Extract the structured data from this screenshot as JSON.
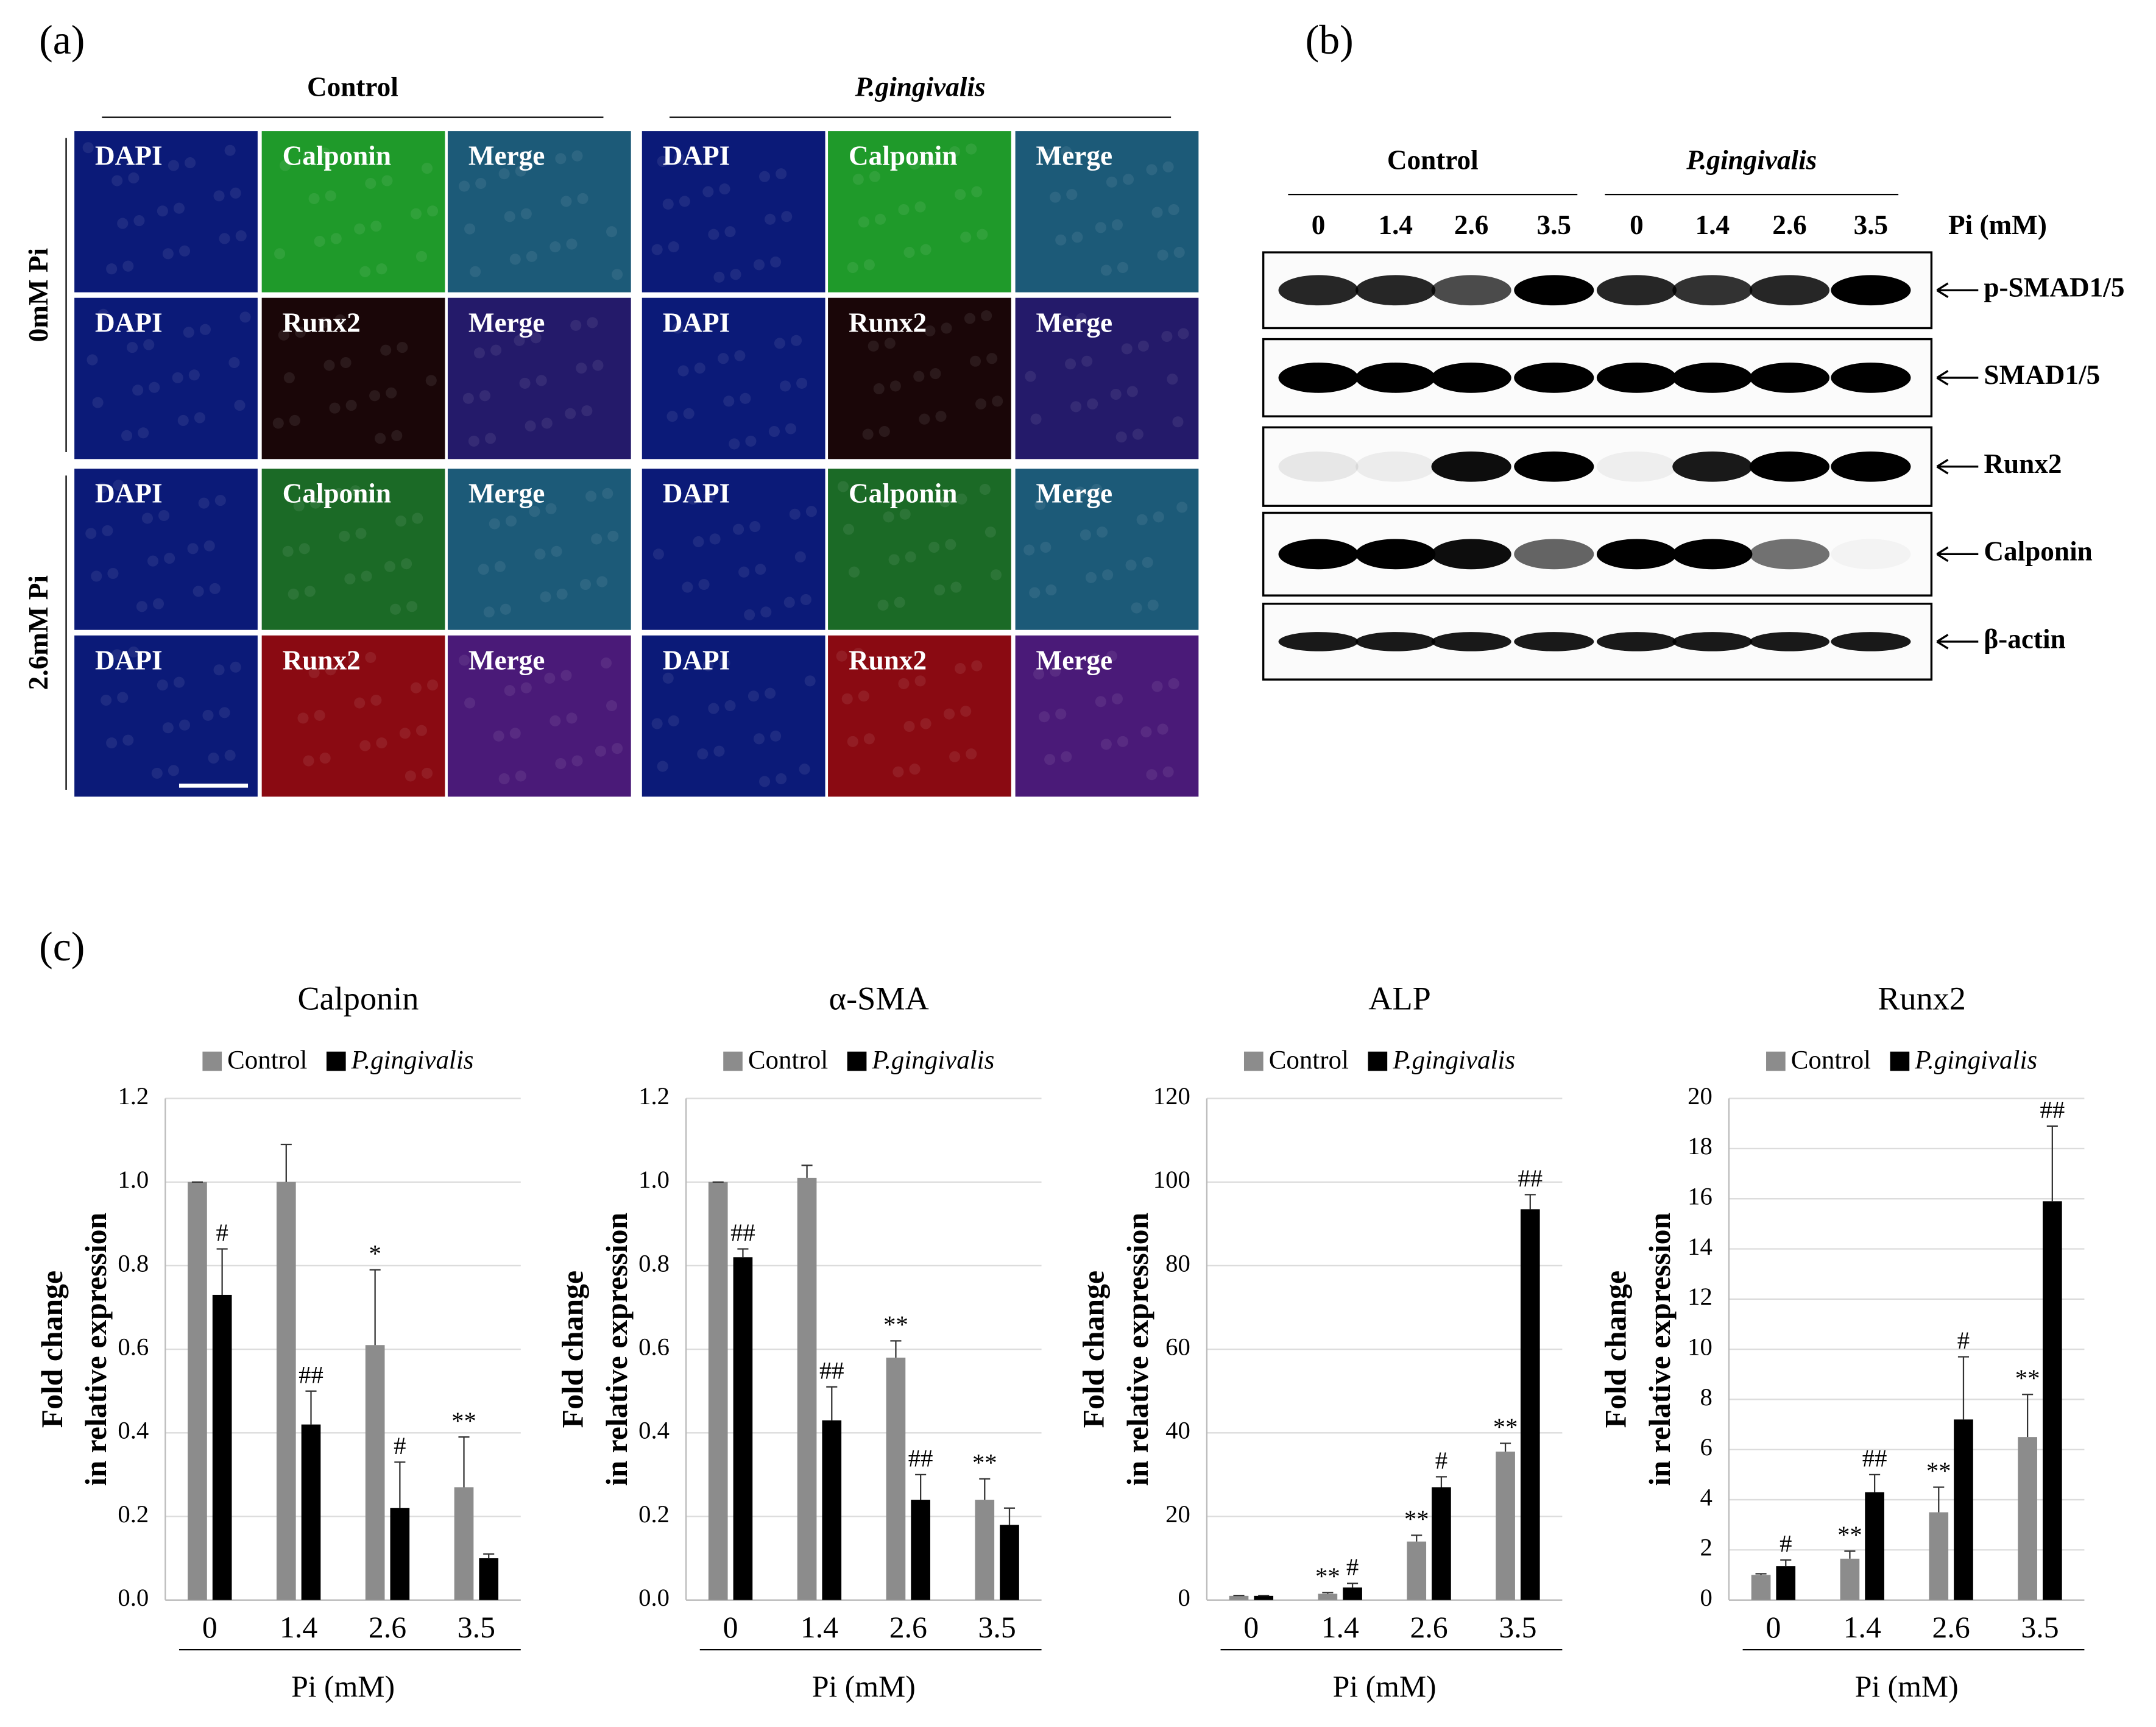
{
  "panel_labels": [
    "(a)",
    "(b)",
    "(c)"
  ],
  "panel_a": {
    "groups": [
      "Control",
      "P.gingivalis"
    ],
    "rows": [
      "0mM Pi",
      "2.6mM Pi"
    ],
    "cells": [
      [
        "DAPI",
        "Calponin",
        "Merge",
        "DAPI",
        "Calponin",
        "Merge"
      ],
      [
        "DAPI",
        "Runx2",
        "Merge",
        "DAPI",
        "Runx2",
        "Merge"
      ],
      [
        "DAPI",
        "Calponin",
        "Merge",
        "DAPI",
        "Calponin",
        "Merge"
      ],
      [
        "DAPI",
        "Runx2",
        "Merge",
        "DAPI",
        "Runx2",
        "Merge"
      ]
    ]
  },
  "panel_b": {
    "groups": [
      "Control",
      "P.gingivalis"
    ],
    "lanes": [
      0,
      1.4,
      2.6,
      3.5,
      0,
      1.4,
      2.6,
      3.5
    ],
    "lane_axis": "Pi (mM)",
    "bands": [
      "p-SMAD1/5",
      "SMAD1/5",
      "Runx2",
      "Calponin",
      "β-actin"
    ]
  },
  "chart_data": [
    {
      "type": "bar",
      "title": "Calponin",
      "ylabel": [
        "Fold change",
        "in relative expression"
      ],
      "xlabel": "Pi (mM)",
      "categories": [
        "0",
        "1.4",
        "2.6",
        "3.5"
      ],
      "ylim": [
        0,
        1.2
      ],
      "yticks": [
        {
          "value": 0,
          "label": "0.0"
        },
        0.2,
        0.4,
        0.6,
        0.8,
        {
          "value": 1,
          "label": "1.0"
        },
        1.2
      ],
      "grid": true,
      "series": [
        {
          "name": "Control",
          "color": "#8c8c8c",
          "values": [
            1.0,
            1.0,
            0.61,
            0.27
          ],
          "errors": [
            0.0,
            0.09,
            0.18,
            0.12
          ],
          "significance": [
            null,
            null,
            "*",
            "**"
          ]
        },
        {
          "name": "P.gingivalis",
          "color": "#000000",
          "values": [
            0.73,
            0.42,
            0.22,
            0.1
          ],
          "errors": [
            0.11,
            0.08,
            0.11,
            0.01
          ],
          "significance": [
            "#",
            "##",
            "#",
            null
          ]
        }
      ]
    },
    {
      "type": "bar",
      "title": "α-SMA",
      "ylabel": [
        "Fold change",
        "in relative expression"
      ],
      "xlabel": "Pi (mM)",
      "categories": [
        "0",
        "1.4",
        "2.6",
        "3.5"
      ],
      "ylim": [
        0,
        1.2
      ],
      "yticks": [
        {
          "value": 0,
          "label": "0.0"
        },
        0.2,
        0.4,
        0.6,
        0.8,
        {
          "value": 1,
          "label": "1.0"
        },
        1.2
      ],
      "grid": true,
      "series": [
        {
          "name": "Control",
          "color": "#8c8c8c",
          "values": [
            1.0,
            1.01,
            0.58,
            0.24
          ],
          "errors": [
            0.0,
            0.03,
            0.04,
            0.05
          ],
          "significance": [
            null,
            null,
            "**",
            "**"
          ]
        },
        {
          "name": "P.gingivalis",
          "color": "#000000",
          "values": [
            0.82,
            0.43,
            0.24,
            0.18
          ],
          "errors": [
            0.02,
            0.08,
            0.06,
            0.04
          ],
          "significance": [
            "##",
            "##",
            "##",
            null
          ]
        }
      ]
    },
    {
      "type": "bar",
      "title": "ALP",
      "ylabel": [
        "Fold change",
        "in relative expression"
      ],
      "xlabel": "Pi (mM)",
      "categories": [
        "0",
        "1.4",
        "2.6",
        "3.5"
      ],
      "ylim": [
        0,
        120
      ],
      "yticks": [
        0,
        20,
        40,
        60,
        80,
        100,
        120
      ],
      "grid": true,
      "series": [
        {
          "name": "Control",
          "color": "#8c8c8c",
          "values": [
            1,
            1.5,
            14,
            35.5
          ],
          "errors": [
            0.1,
            0.3,
            1.5,
            2
          ],
          "significance": [
            null,
            "**",
            "**",
            "**"
          ]
        },
        {
          "name": "P.gingivalis",
          "color": "#000000",
          "values": [
            1,
            3,
            27,
            93.5
          ],
          "errors": [
            0.1,
            1,
            2.5,
            3.5
          ],
          "significance": [
            null,
            "#",
            "#",
            "##"
          ]
        }
      ]
    },
    {
      "type": "bar",
      "title": "Runx2",
      "ylabel": [
        "Fold change",
        "in relative expression"
      ],
      "xlabel": "Pi (mM)",
      "categories": [
        "0",
        "1.4",
        "2.6",
        "3.5"
      ],
      "ylim": [
        0,
        20
      ],
      "yticks": [
        0,
        2,
        4,
        6,
        8,
        10,
        12,
        14,
        16,
        18,
        20
      ],
      "grid": true,
      "series": [
        {
          "name": "Control",
          "color": "#8c8c8c",
          "values": [
            1,
            1.65,
            3.5,
            6.5
          ],
          "errors": [
            0.05,
            0.3,
            1,
            1.7
          ],
          "significance": [
            null,
            "**",
            "**",
            "**"
          ]
        },
        {
          "name": "P.gingivalis",
          "color": "#000000",
          "values": [
            1.35,
            4.3,
            7.2,
            15.9
          ],
          "errors": [
            0.25,
            0.7,
            2.5,
            3
          ],
          "significance": [
            "#",
            "##",
            "#",
            "##"
          ]
        }
      ]
    }
  ]
}
